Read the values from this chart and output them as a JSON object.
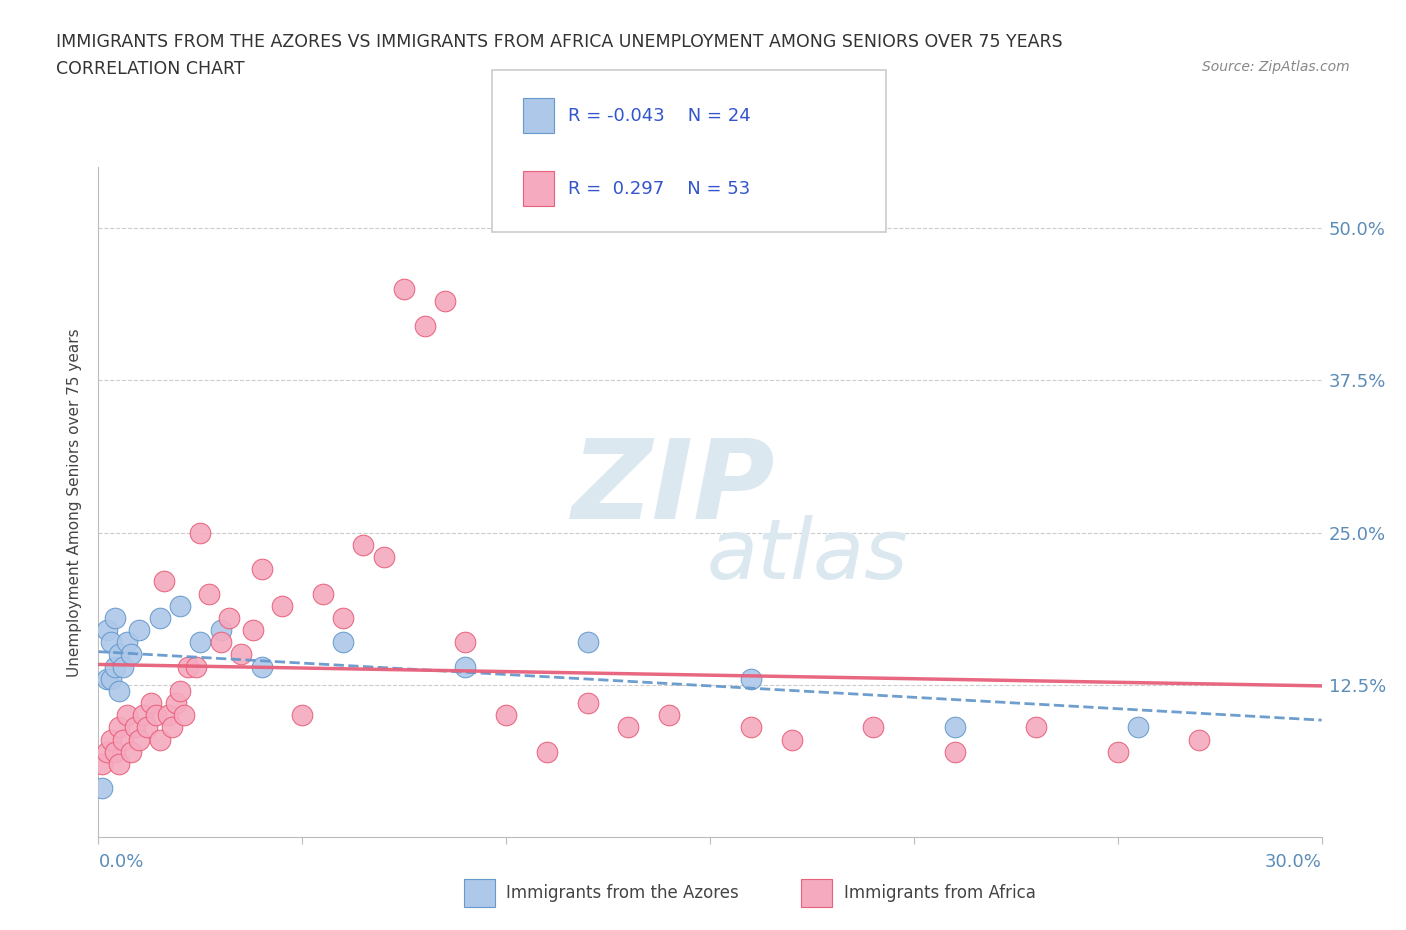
{
  "title_line1": "IMMIGRANTS FROM THE AZORES VS IMMIGRANTS FROM AFRICA UNEMPLOYMENT AMONG SENIORS OVER 75 YEARS",
  "title_line2": "CORRELATION CHART",
  "source": "Source: ZipAtlas.com",
  "ylabel": "Unemployment Among Seniors over 75 years",
  "ytick_vals": [
    0.0,
    0.125,
    0.25,
    0.375,
    0.5
  ],
  "ytick_labels": [
    "",
    "12.5%",
    "25.0%",
    "37.5%",
    "50.0%"
  ],
  "xlim": [
    0.0,
    0.3
  ],
  "ylim": [
    0.0,
    0.55
  ],
  "legend_r_azores": "-0.043",
  "legend_n_azores": "24",
  "legend_r_africa": "0.297",
  "legend_n_africa": "53",
  "azores_color": "#adc8e8",
  "africa_color": "#f5aabf",
  "azores_edge_color": "#6699cc",
  "africa_edge_color": "#e8607a",
  "azores_line_color": "#6699cc",
  "africa_line_color": "#e8607a",
  "background_color": "#ffffff",
  "azores_x": [
    0.001,
    0.002,
    0.002,
    0.003,
    0.003,
    0.004,
    0.004,
    0.005,
    0.005,
    0.006,
    0.007,
    0.008,
    0.01,
    0.015,
    0.02,
    0.025,
    0.03,
    0.04,
    0.06,
    0.09,
    0.12,
    0.16,
    0.21,
    0.255
  ],
  "azores_y": [
    0.04,
    0.13,
    0.17,
    0.13,
    0.16,
    0.14,
    0.18,
    0.12,
    0.15,
    0.14,
    0.16,
    0.15,
    0.17,
    0.18,
    0.19,
    0.16,
    0.17,
    0.14,
    0.16,
    0.14,
    0.16,
    0.13,
    0.09,
    0.09
  ],
  "africa_x": [
    0.001,
    0.002,
    0.003,
    0.004,
    0.005,
    0.005,
    0.006,
    0.007,
    0.008,
    0.009,
    0.01,
    0.011,
    0.012,
    0.013,
    0.014,
    0.015,
    0.016,
    0.017,
    0.018,
    0.019,
    0.02,
    0.021,
    0.022,
    0.024,
    0.025,
    0.027,
    0.03,
    0.032,
    0.035,
    0.038,
    0.04,
    0.045,
    0.05,
    0.055,
    0.06,
    0.065,
    0.07,
    0.075,
    0.08,
    0.085,
    0.09,
    0.1,
    0.11,
    0.12,
    0.13,
    0.14,
    0.16,
    0.17,
    0.19,
    0.21,
    0.23,
    0.25,
    0.27
  ],
  "africa_y": [
    0.06,
    0.07,
    0.08,
    0.07,
    0.06,
    0.09,
    0.08,
    0.1,
    0.07,
    0.09,
    0.08,
    0.1,
    0.09,
    0.11,
    0.1,
    0.08,
    0.21,
    0.1,
    0.09,
    0.11,
    0.12,
    0.1,
    0.14,
    0.14,
    0.25,
    0.2,
    0.16,
    0.18,
    0.15,
    0.17,
    0.22,
    0.19,
    0.1,
    0.2,
    0.18,
    0.24,
    0.23,
    0.45,
    0.42,
    0.44,
    0.16,
    0.1,
    0.07,
    0.11,
    0.09,
    0.1,
    0.09,
    0.08,
    0.09,
    0.07,
    0.09,
    0.07,
    0.08
  ]
}
